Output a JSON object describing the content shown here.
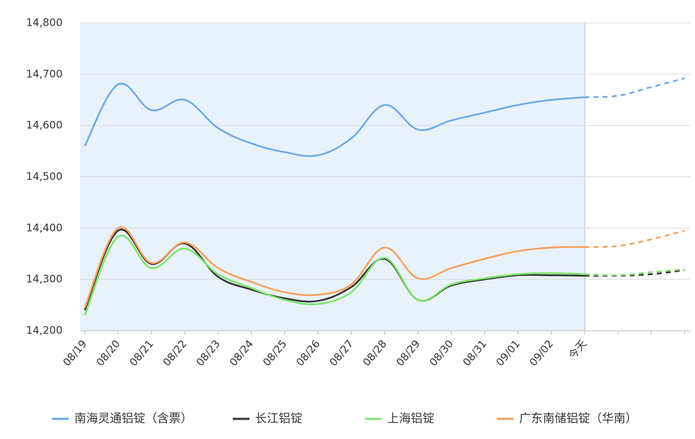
{
  "chart_data": {
    "type": "line",
    "categories": [
      "08/19",
      "08/20",
      "08/21",
      "08/22",
      "08/23",
      "08/24",
      "08/25",
      "08/26",
      "08/27",
      "08/28",
      "08/29",
      "08/30",
      "08/31",
      "09/01",
      "09/02",
      "今天",
      null,
      null,
      null
    ],
    "dash_from_index": 15,
    "ylim": [
      14200,
      14800
    ],
    "yticks": [
      {
        "value": 14200,
        "label": "14,200"
      },
      {
        "value": 14300,
        "label": "14,300"
      },
      {
        "value": 14400,
        "label": "14,400"
      },
      {
        "value": 14500,
        "label": "14,500"
      },
      {
        "value": 14600,
        "label": "14,600"
      },
      {
        "value": 14700,
        "label": "14,700"
      },
      {
        "value": 14800,
        "label": "14,800"
      }
    ],
    "grid": true,
    "series": [
      {
        "name": "南海灵通铝锭（含票）",
        "color": "#6aa9e8",
        "values": [
          14560,
          14680,
          14630,
          14650,
          14595,
          14565,
          14548,
          14542,
          14575,
          14640,
          14592,
          14610,
          14625,
          14640,
          14650,
          14655,
          14658,
          14675,
          14692
        ]
      },
      {
        "name": "长江铝锭",
        "color": "#333333",
        "values": [
          14240,
          14395,
          14330,
          14370,
          14305,
          14280,
          14263,
          14258,
          14285,
          14340,
          14260,
          14288,
          14300,
          14308,
          14308,
          14307,
          14307,
          14310,
          14318
        ]
      },
      {
        "name": "上海铝锭",
        "color": "#7ee36a",
        "values": [
          14230,
          14383,
          14322,
          14360,
          14310,
          14283,
          14260,
          14252,
          14275,
          14342,
          14260,
          14290,
          14302,
          14310,
          14312,
          14310,
          14308,
          14314,
          14320
        ]
      },
      {
        "name": "广东南储铝锭（华南）",
        "color": "#f5a15c",
        "values": [
          14245,
          14400,
          14332,
          14372,
          14322,
          14295,
          14275,
          14270,
          14290,
          14362,
          14302,
          14322,
          14340,
          14355,
          14362,
          14363,
          14365,
          14378,
          14395
        ]
      }
    ]
  }
}
